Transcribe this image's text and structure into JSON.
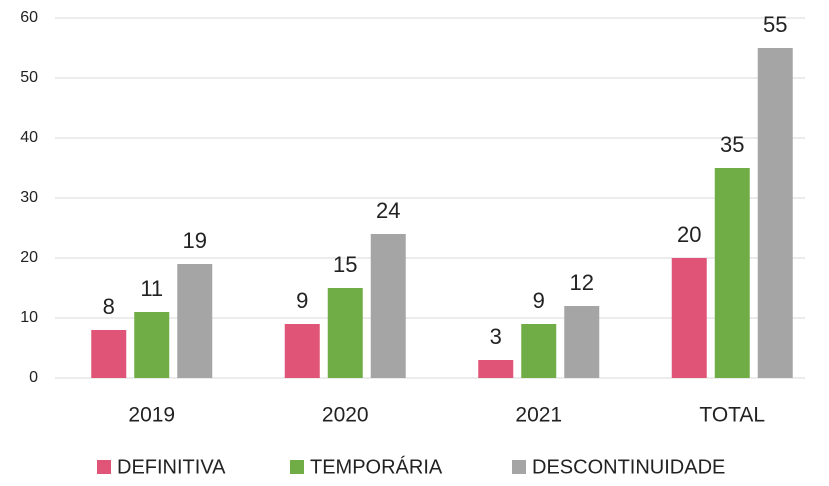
{
  "chart_data": {
    "type": "bar",
    "categories": [
      "2019",
      "2020",
      "2021",
      "TOTAL"
    ],
    "series": [
      {
        "name": "DEFINITIVA",
        "color": "#e05577",
        "values": [
          8,
          9,
          3,
          20
        ]
      },
      {
        "name": "TEMPORÁRIA",
        "color": "#70ad47",
        "values": [
          11,
          15,
          9,
          35
        ]
      },
      {
        "name": "DESCONTINUIDADE",
        "color": "#a5a5a5",
        "values": [
          19,
          24,
          12,
          55
        ]
      }
    ],
    "ylim": [
      0,
      60
    ],
    "yticks": [
      0,
      10,
      20,
      30,
      40,
      50,
      60
    ],
    "grid": true,
    "legend": "bottom"
  }
}
